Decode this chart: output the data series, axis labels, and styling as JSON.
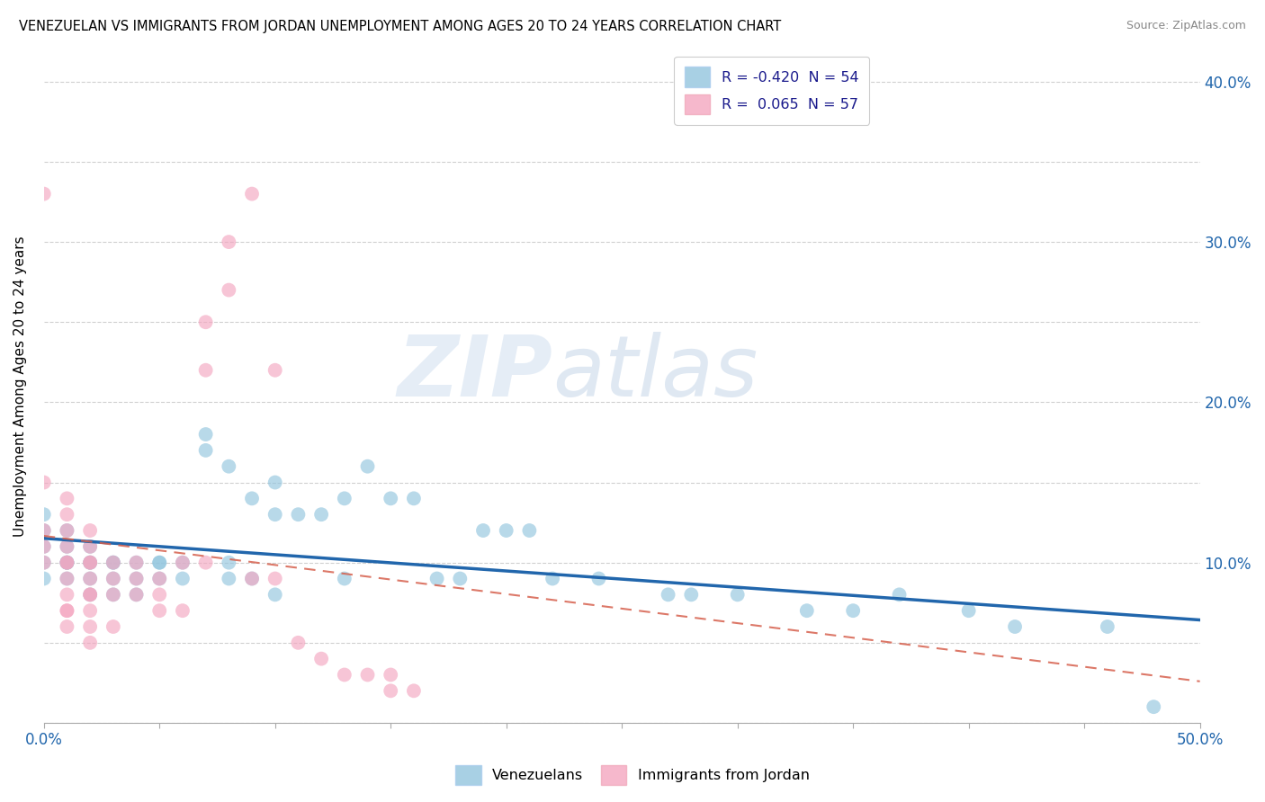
{
  "title": "VENEZUELAN VS IMMIGRANTS FROM JORDAN UNEMPLOYMENT AMONG AGES 20 TO 24 YEARS CORRELATION CHART",
  "source": "Source: ZipAtlas.com",
  "ylabel": "Unemployment Among Ages 20 to 24 years",
  "xlim": [
    0.0,
    0.5
  ],
  "ylim": [
    0.0,
    0.42
  ],
  "xticks": [
    0.0,
    0.05,
    0.1,
    0.15,
    0.2,
    0.25,
    0.3,
    0.35,
    0.4,
    0.45,
    0.5
  ],
  "yticks": [
    0.0,
    0.05,
    0.1,
    0.15,
    0.2,
    0.25,
    0.3,
    0.35,
    0.4
  ],
  "blue_R": -0.42,
  "blue_N": 54,
  "pink_R": 0.065,
  "pink_N": 57,
  "blue_color": "#92c5de",
  "pink_color": "#f4a6c0",
  "blue_line_color": "#2166ac",
  "pink_line_color": "#d6604d",
  "watermark_zip": "ZIP",
  "watermark_atlas": "atlas",
  "venezuelans_x": [
    0.0,
    0.0,
    0.0,
    0.0,
    0.0,
    0.01,
    0.01,
    0.01,
    0.01,
    0.01,
    0.01,
    0.02,
    0.02,
    0.02,
    0.02,
    0.02,
    0.03,
    0.03,
    0.03,
    0.03,
    0.04,
    0.04,
    0.04,
    0.05,
    0.05,
    0.05,
    0.06,
    0.06,
    0.07,
    0.07,
    0.08,
    0.08,
    0.08,
    0.09,
    0.09,
    0.1,
    0.1,
    0.1,
    0.11,
    0.12,
    0.13,
    0.13,
    0.14,
    0.15,
    0.16,
    0.17,
    0.18,
    0.19,
    0.2,
    0.21,
    0.22,
    0.24,
    0.27
  ],
  "venezuelans_y": [
    0.1,
    0.11,
    0.12,
    0.13,
    0.09,
    0.1,
    0.1,
    0.11,
    0.12,
    0.09,
    0.1,
    0.09,
    0.1,
    0.1,
    0.11,
    0.08,
    0.09,
    0.1,
    0.1,
    0.08,
    0.09,
    0.1,
    0.08,
    0.1,
    0.09,
    0.1,
    0.09,
    0.1,
    0.18,
    0.17,
    0.1,
    0.16,
    0.09,
    0.14,
    0.09,
    0.15,
    0.08,
    0.13,
    0.13,
    0.13,
    0.09,
    0.14,
    0.16,
    0.14,
    0.14,
    0.09,
    0.09,
    0.12,
    0.12,
    0.12,
    0.09,
    0.09,
    0.08
  ],
  "venezuelans_x2": [
    0.28,
    0.3,
    0.33,
    0.35,
    0.37,
    0.4,
    0.42,
    0.46,
    0.48
  ],
  "venezuelans_y2": [
    0.08,
    0.08,
    0.07,
    0.07,
    0.08,
    0.07,
    0.06,
    0.06,
    0.01
  ],
  "jordan_x": [
    0.0,
    0.0,
    0.0,
    0.0,
    0.0,
    0.01,
    0.01,
    0.01,
    0.01,
    0.01,
    0.01,
    0.01,
    0.01,
    0.01,
    0.01,
    0.01,
    0.02,
    0.02,
    0.02,
    0.02,
    0.02,
    0.02,
    0.02,
    0.02,
    0.02,
    0.02,
    0.03,
    0.03,
    0.03,
    0.03,
    0.04,
    0.04,
    0.04,
    0.05,
    0.05,
    0.05,
    0.06,
    0.06,
    0.07,
    0.07,
    0.07,
    0.08,
    0.08,
    0.09,
    0.09,
    0.1,
    0.1,
    0.11,
    0.12,
    0.13,
    0.14,
    0.15,
    0.15,
    0.16
  ],
  "jordan_y": [
    0.1,
    0.11,
    0.12,
    0.15,
    0.33,
    0.06,
    0.07,
    0.07,
    0.08,
    0.09,
    0.1,
    0.1,
    0.11,
    0.12,
    0.13,
    0.14,
    0.05,
    0.06,
    0.07,
    0.08,
    0.08,
    0.09,
    0.1,
    0.1,
    0.11,
    0.12,
    0.06,
    0.08,
    0.09,
    0.1,
    0.08,
    0.09,
    0.1,
    0.07,
    0.08,
    0.09,
    0.07,
    0.1,
    0.25,
    0.22,
    0.1,
    0.27,
    0.3,
    0.09,
    0.33,
    0.09,
    0.22,
    0.05,
    0.04,
    0.03,
    0.03,
    0.02,
    0.03,
    0.02
  ]
}
